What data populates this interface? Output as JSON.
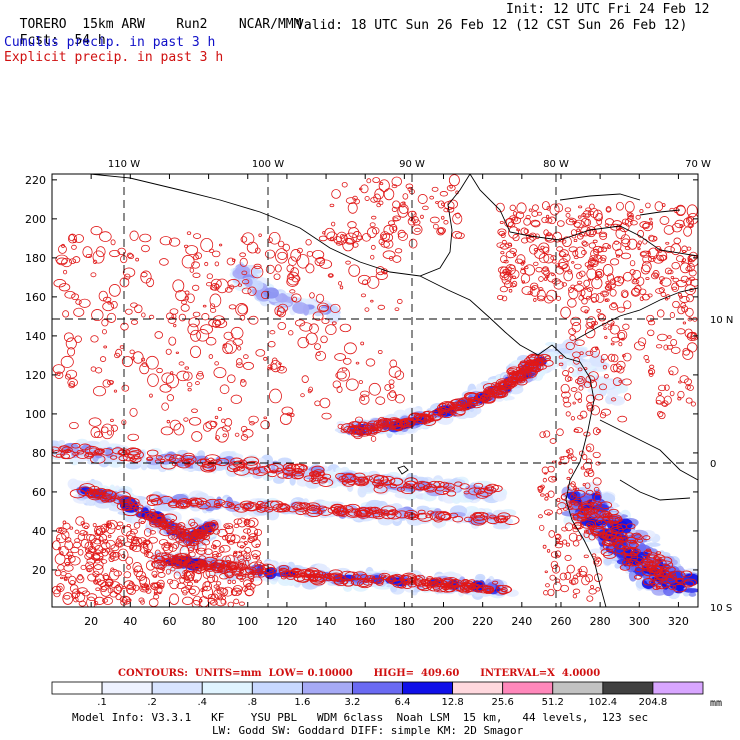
{
  "header": {
    "model": "TORERO  15km ARW",
    "run": "Run2",
    "org": "NCAR/MMM",
    "init": "Init: 12 UTC Fri 24 Feb 12",
    "fcst_label": "Fcst:",
    "fcst_value": "54 h",
    "valid": "Valid: 18 UTC Sun 26 Feb 12 (12 CST Sun 26 Feb 12)",
    "legend_cumulus": "Cumulus precip. in past 3 h",
    "legend_explicit": "Explicit precip. in past 3 h"
  },
  "colors": {
    "cumulus_text": "#1010c8",
    "explicit_text": "#d01010",
    "contour_red": "#e01818",
    "coast_black": "#000000"
  },
  "map": {
    "top_lon_labels": [
      "110 W",
      "100 W",
      "90 W",
      "80 W",
      "70 W"
    ],
    "right_lat_labels": [
      "10 N",
      "0",
      "10 S"
    ],
    "y_ticks": [
      "20",
      "40",
      "60",
      "80",
      "100",
      "120",
      "140",
      "160",
      "180",
      "200",
      "220"
    ],
    "x_ticks": [
      "20",
      "40",
      "60",
      "80",
      "100",
      "120",
      "140",
      "160",
      "180",
      "200",
      "220",
      "240",
      "260",
      "280",
      "300",
      "320"
    ]
  },
  "contours": {
    "label": "CONTOURS:",
    "units": "UNITS=mm",
    "low": "LOW= 0.10000",
    "high": "HIGH=  409.60",
    "interval": "INTERVAL=X  4.0000"
  },
  "colorbar": {
    "labels": [
      ".1",
      ".2",
      ".4",
      ".8",
      "1.6",
      "3.2",
      "6.4",
      "12.8",
      "25.6",
      "51.2",
      "102.4",
      "204.8"
    ],
    "colors": [
      "#ffffff",
      "#eef2ff",
      "#d8e4ff",
      "#e0f4ff",
      "#c8d8ff",
      "#a6aaf6",
      "#6a6af2",
      "#1010e8",
      "#ffd8de",
      "#ff88bb",
      "#c2c2c2",
      "#404040",
      "#d8a6ff"
    ],
    "unit": "mm"
  },
  "model_info": {
    "line1": "Model Info: V3.3.1   KF    YSU PBL   WDM 6class  Noah LSM  15 km,   44 levels,  123 sec",
    "line2": "LW: Godd SW: Goddard DIFF: simple KM: 2D Smagor"
  }
}
